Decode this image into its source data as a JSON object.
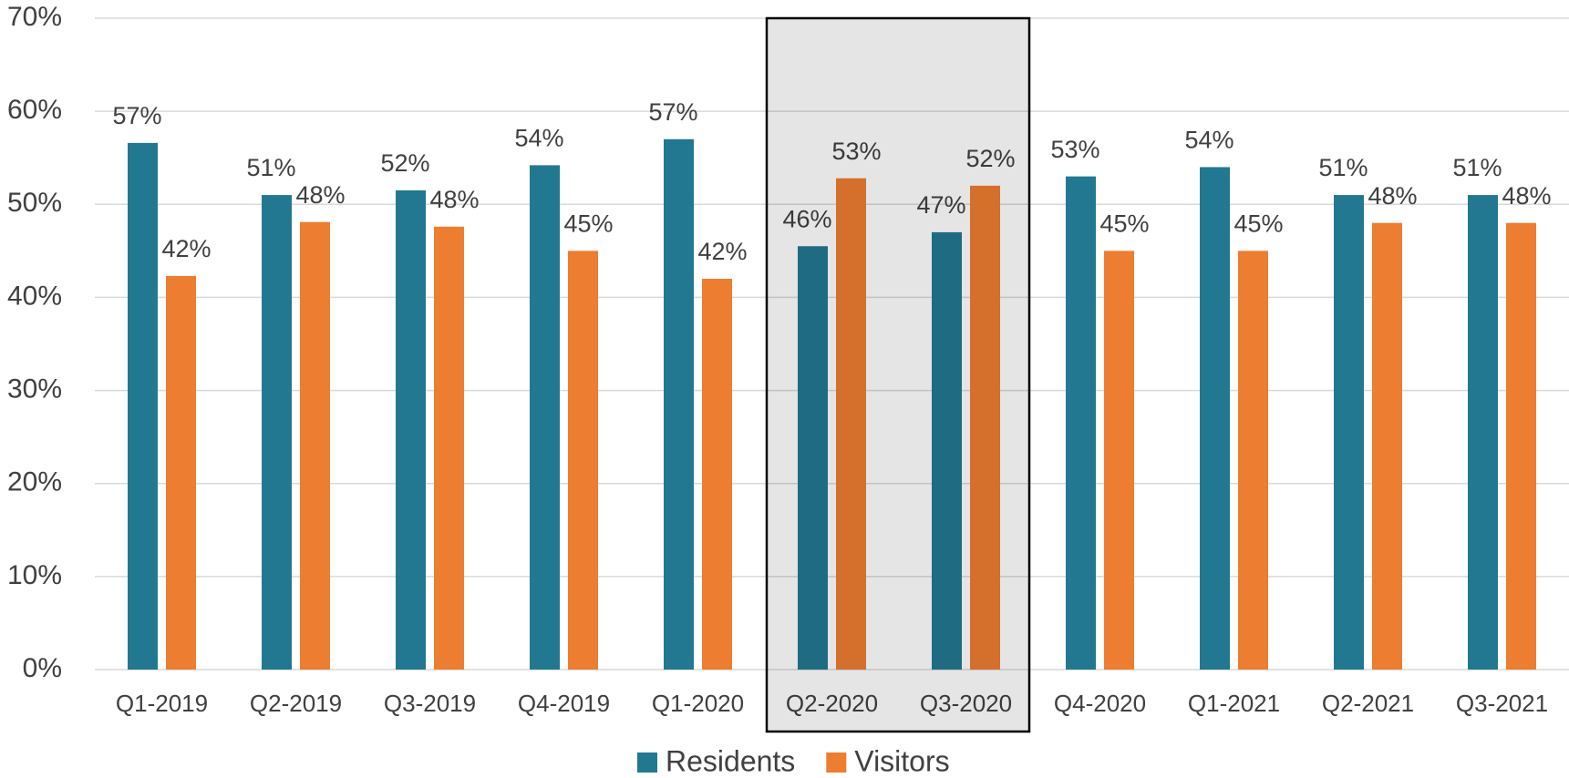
{
  "chart_data": {
    "type": "bar",
    "categories": [
      "Q1-2019",
      "Q2-2019",
      "Q3-2019",
      "Q4-2019",
      "Q1-2020",
      "Q2-2020",
      "Q3-2020",
      "Q4-2020",
      "Q1-2021",
      "Q2-2021",
      "Q3-2021"
    ],
    "series": [
      {
        "name": "Residents",
        "color": "#237891",
        "values": [
          56.6,
          51,
          51.5,
          54.2,
          57,
          45.5,
          47,
          53,
          54,
          51,
          51
        ],
        "value_labels": [
          "57%",
          "51%",
          "52%",
          "54%",
          "57%",
          "46%",
          "47%",
          "53%",
          "54%",
          "51%",
          "51%"
        ]
      },
      {
        "name": "Visitors",
        "color": "#ed7d31",
        "values": [
          42.3,
          48.1,
          47.6,
          45,
          42,
          52.8,
          52,
          45,
          45,
          48,
          48
        ],
        "value_labels": [
          "42%",
          "48%",
          "48%",
          "45%",
          "42%",
          "53%",
          "52%",
          "45%",
          "45%",
          "48%",
          "48%"
        ]
      }
    ],
    "ylim": [
      0,
      70
    ],
    "yticks": [
      {
        "value": 0,
        "label": "0%"
      },
      {
        "value": 10,
        "label": "10%"
      },
      {
        "value": 20,
        "label": "20%"
      },
      {
        "value": 30,
        "label": "30%"
      },
      {
        "value": 40,
        "label": "40%"
      },
      {
        "value": 50,
        "label": "50%"
      },
      {
        "value": 60,
        "label": "60%"
      },
      {
        "value": 70,
        "label": "70%"
      }
    ],
    "grid": true,
    "legend": "bottom"
  }
}
